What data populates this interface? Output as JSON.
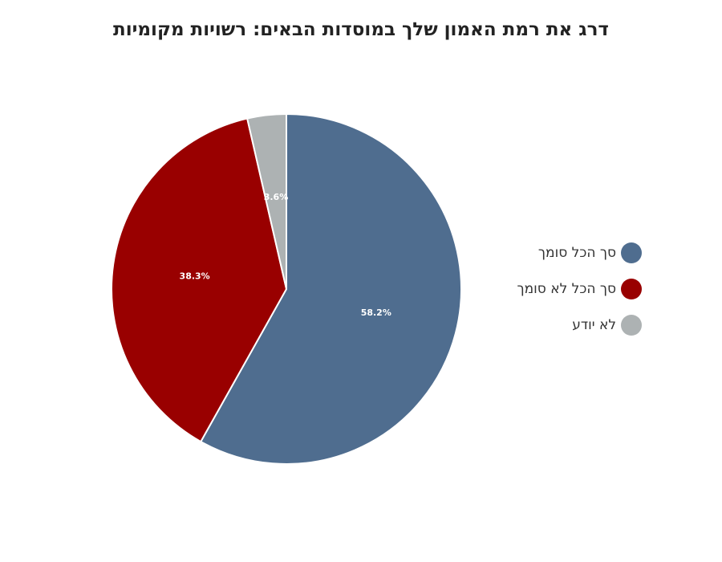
{
  "chart_data": {
    "type": "pie",
    "title": "דרג את רמת האמון שלך במוסדות הבאים: רשויות מקומיות",
    "slices": [
      {
        "label": "סך הכל סומך",
        "value": 58.2,
        "display": "58.2%",
        "color": "#4f6d8f"
      },
      {
        "label": "סך הכל לא סומך",
        "value": 38.3,
        "display": "38.3%",
        "color": "#990000"
      },
      {
        "label": "לא יודע",
        "value": 3.6,
        "display": "3.6%",
        "color": "#adb2b3"
      }
    ],
    "legend_position": "right"
  }
}
